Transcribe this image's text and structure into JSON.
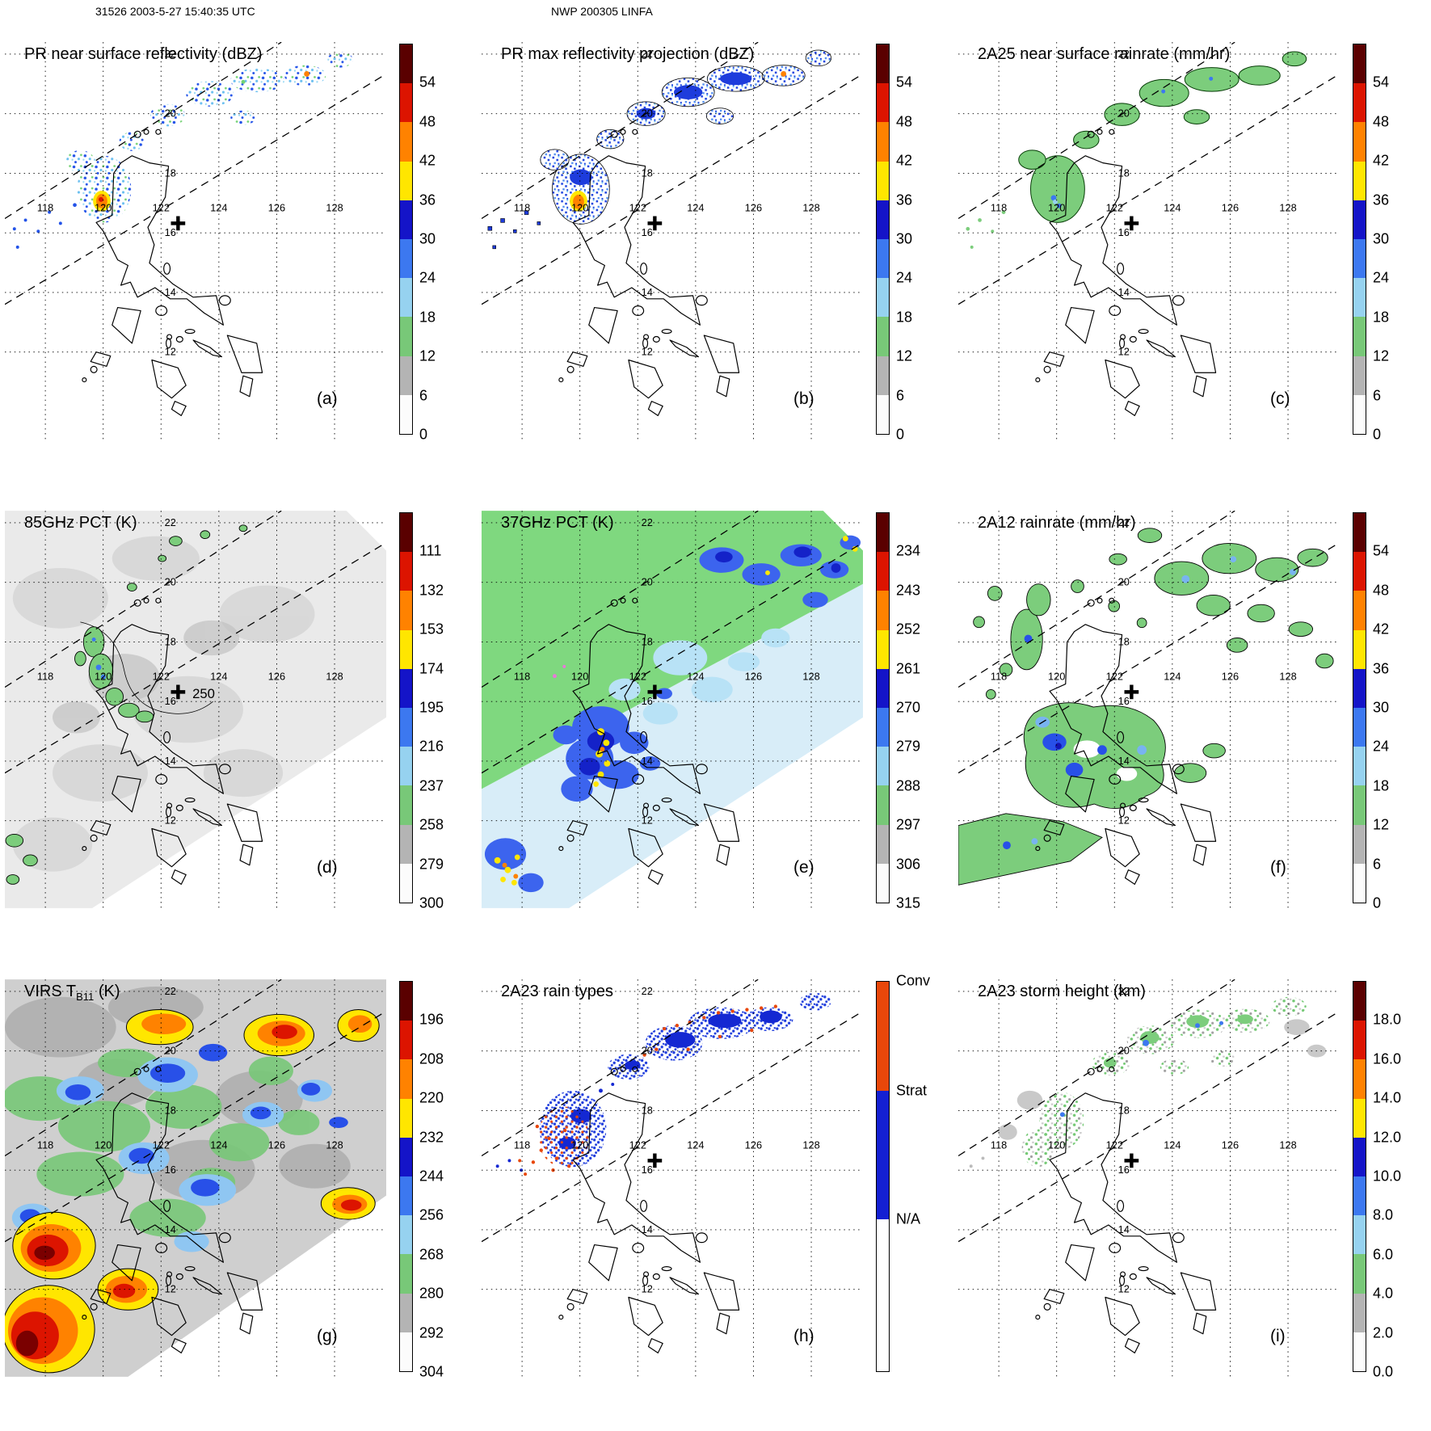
{
  "header": {
    "left": "31526 2003-5-27 15:40:35 UTC",
    "center": "NWP 200305 LINFA"
  },
  "geo": {
    "lon": [
      {
        "value": 118,
        "label": "118"
      },
      {
        "value": 120,
        "label": "120"
      },
      {
        "value": 122,
        "label": "122"
      },
      {
        "value": 124,
        "label": "124"
      },
      {
        "value": 126,
        "label": "126"
      },
      {
        "value": 128,
        "label": "128"
      }
    ],
    "lat": [
      {
        "value": 22,
        "label": "22"
      },
      {
        "value": 20,
        "label": "20"
      },
      {
        "value": 18,
        "label": "18"
      },
      {
        "value": 16,
        "label": "16"
      },
      {
        "value": 14,
        "label": "14"
      },
      {
        "value": 12,
        "label": "12"
      }
    ]
  },
  "panels": [
    {
      "letter": "(a)",
      "title_pre": "PR near surface reflectivity (dBZ)",
      "title_sub": "",
      "title_post": "",
      "colorbar": {
        "type": "numeric",
        "ticks": [
          "54",
          "48",
          "42",
          "36",
          "30",
          "24",
          "18",
          "12",
          "6",
          "0"
        ],
        "colors": [
          "#5a0000",
          "#dc1400",
          "#ff8200",
          "#ffe600",
          "#1414c8",
          "#3c78f0",
          "#96d2f0",
          "#78c878",
          "#b4b4b4",
          "#fcfcfc"
        ]
      }
    },
    {
      "letter": "(b)",
      "title_pre": "PR max reflectivity projection (dBZ)",
      "title_sub": "",
      "title_post": "",
      "colorbar": {
        "type": "numeric",
        "ticks": [
          "54",
          "48",
          "42",
          "36",
          "30",
          "24",
          "18",
          "12",
          "6",
          "0"
        ],
        "colors": [
          "#5a0000",
          "#dc1400",
          "#ff8200",
          "#ffe600",
          "#1414c8",
          "#3c78f0",
          "#96d2f0",
          "#78c878",
          "#b4b4b4",
          "#fcfcfc"
        ]
      }
    },
    {
      "letter": "(c)",
      "title_pre": "2A25 near surface rainrate (mm/hr)",
      "title_sub": "",
      "title_post": "",
      "colorbar": {
        "type": "numeric",
        "ticks": [
          "54",
          "48",
          "42",
          "36",
          "30",
          "24",
          "18",
          "12",
          "6",
          "0"
        ],
        "colors": [
          "#5a0000",
          "#dc1400",
          "#ff8200",
          "#ffe600",
          "#1414c8",
          "#3c78f0",
          "#96d2f0",
          "#78c878",
          "#b4b4b4",
          "#fcfcfc"
        ]
      }
    },
    {
      "letter": "(d)",
      "title_pre": "85GHz PCT (K)",
      "title_sub": "",
      "title_post": "",
      "map_annotation": "250",
      "colorbar": {
        "type": "numeric",
        "ticks": [
          "111",
          "132",
          "153",
          "174",
          "195",
          "216",
          "237",
          "258",
          "279",
          "300"
        ],
        "colors": [
          "#5a0000",
          "#dc1400",
          "#ff8200",
          "#ffe600",
          "#1414c8",
          "#3c78f0",
          "#96d2f0",
          "#78c878",
          "#b4b4b4",
          "#fcfcfc"
        ]
      }
    },
    {
      "letter": "(e)",
      "title_pre": "37GHz PCT (K)",
      "title_sub": "",
      "title_post": "",
      "colorbar": {
        "type": "numeric",
        "ticks": [
          "234",
          "243",
          "252",
          "261",
          "270",
          "279",
          "288",
          "297",
          "306",
          "315"
        ],
        "colors": [
          "#5a0000",
          "#dc1400",
          "#ff8200",
          "#ffe600",
          "#1414c8",
          "#3c78f0",
          "#96d2f0",
          "#78c878",
          "#b4b4b4",
          "#fcfcfc"
        ]
      }
    },
    {
      "letter": "(f)",
      "title_pre": "2A12 rainrate (mm/hr)",
      "title_sub": "",
      "title_post": "",
      "colorbar": {
        "type": "numeric",
        "ticks": [
          "54",
          "48",
          "42",
          "36",
          "30",
          "24",
          "18",
          "12",
          "6",
          "0"
        ],
        "colors": [
          "#5a0000",
          "#dc1400",
          "#ff8200",
          "#ffe600",
          "#1414c8",
          "#3c78f0",
          "#96d2f0",
          "#78c878",
          "#b4b4b4",
          "#fcfcfc"
        ]
      }
    },
    {
      "letter": "(g)",
      "title_pre": "VIRS T",
      "title_sub": "B11",
      "title_post": " (K)",
      "colorbar": {
        "type": "numeric",
        "ticks": [
          "196",
          "208",
          "220",
          "232",
          "244",
          "256",
          "268",
          "280",
          "292",
          "304"
        ],
        "colors": [
          "#5a0000",
          "#dc1400",
          "#ff8200",
          "#ffe600",
          "#1414c8",
          "#3c78f0",
          "#96d2f0",
          "#78c878",
          "#b4b4b4",
          "#fcfcfc"
        ]
      }
    },
    {
      "letter": "(h)",
      "title_pre": "2A23 rain types",
      "title_sub": "",
      "title_post": "",
      "colorbar": {
        "type": "categorical",
        "segments": [
          {
            "label": "Conv",
            "color": "#e8470a",
            "frac": 0.28
          },
          {
            "label": "Strat",
            "color": "#1420d2",
            "frac": 0.33
          },
          {
            "label": "N/A",
            "color": "#ffffff",
            "frac": 0.39
          }
        ]
      }
    },
    {
      "letter": "(i)",
      "title_pre": "2A23 storm height (km)",
      "title_sub": "",
      "title_post": "",
      "colorbar": {
        "type": "numeric",
        "ticks": [
          "18.0",
          "16.0",
          "14.0",
          "12.0",
          "10.0",
          "8.0",
          "6.0",
          "4.0",
          "2.0",
          "0.0"
        ],
        "colors": [
          "#5a0000",
          "#dc1400",
          "#ff8200",
          "#ffe600",
          "#1414c8",
          "#3c78f0",
          "#96d2f0",
          "#78c878",
          "#b4b4b4",
          "#fcfcfc"
        ]
      }
    }
  ],
  "chart_data": {
    "figure_type": "multi-panel TRMM satellite observation maps of one overpass",
    "orbit_header": "31526 2003-5-27 15:40:35 UTC",
    "storm_header": "NWP 200305 LINFA",
    "shared_axes": {
      "lon_ticks": [
        118,
        120,
        122,
        124,
        126,
        128
      ],
      "lat_ticks": [
        12,
        14,
        16,
        18,
        20,
        22
      ],
      "approx_extent": {
        "lon": [
          116.6,
          129.8
        ],
        "lat": [
          9.1,
          22.4
        ]
      },
      "grid": "dotted graticule",
      "coastlines": "Philippines (Luzon, Mindoro, Samar, Masbate, Panay, Visayas)"
    },
    "storm_center_mark": {
      "lon": 122.6,
      "lat": 16.4,
      "symbol": "+"
    },
    "swath_edges": "two dashed lines tilted SW-NE marking the PR swath",
    "panels": [
      {
        "id": "a",
        "type": "heatmap",
        "title": "PR near surface reflectivity (dBZ)",
        "units": "dBZ",
        "scale_ticks": [
          54,
          48,
          42,
          36,
          30,
          24,
          18,
          12,
          6,
          0
        ],
        "features": [
          "convective core 36-54 dBZ near 120E 17N west of Luzon",
          "scattered 18-35 dBZ echoes in NE-tilted swath band from 117E 16N to 128E 23N"
        ]
      },
      {
        "id": "b",
        "type": "heatmap",
        "title": "PR max reflectivity projection (dBZ)",
        "units": "dBZ",
        "scale_ticks": [
          54,
          48,
          42,
          36,
          30,
          24,
          18,
          12,
          6,
          0
        ],
        "features": [
          "same rainband as (a) but denser 24-36 dBZ areas with black outlines",
          "orange 42-48 dBZ core near 120E 17N"
        ]
      },
      {
        "id": "c",
        "type": "heatmap",
        "title": "2A25 near surface rainrate (mm/hr)",
        "units": "mm/hr",
        "scale_ticks": [
          54,
          48,
          42,
          36,
          30,
          24,
          18,
          12,
          6,
          0
        ],
        "features": [
          "mostly 12-18 mm/hr (green) patches tracing the rainband",
          "small 24-30 mm/hr pixels near 120E 17N"
        ]
      },
      {
        "id": "d",
        "type": "heatmap",
        "title": "85GHz PCT (K)",
        "units": "K",
        "scale_ticks": [
          111,
          132,
          153,
          174,
          195,
          216,
          237,
          258,
          279,
          300
        ],
        "annotations": [
          "250 K contour label near 123.4E 16.2N"
        ],
        "features": [
          "wide TMI swath of 258-300 K (light gray)",
          "237-258 K depressions (green) arc west of Luzon and along 20-22N"
        ]
      },
      {
        "id": "e",
        "type": "heatmap",
        "title": "37GHz PCT (K)",
        "units": "K",
        "scale_ticks": [
          234,
          243,
          252,
          261,
          270,
          279,
          288,
          297,
          306,
          315
        ],
        "features": [
          "warm ocean background 288+ K (green) northwest half",
          "270-279 K (blue) cells west of Luzon and along 20-22N",
          "261 K (yellow) pixels in strongest cells near 120E 15-16N and SW corner"
        ]
      },
      {
        "id": "f",
        "type": "heatmap",
        "title": "2A12 rainrate (mm/hr)",
        "units": "mm/hr",
        "scale_ticks": [
          54,
          48,
          42,
          36,
          30,
          24,
          18,
          12,
          6,
          0
        ],
        "features": [
          "broad 12-18 mm/hr (green) rain areas over/west of Luzon and along 20-23N",
          "24-30 mm/hr (blue) cores near 120-121E 14-16N"
        ]
      },
      {
        "id": "g",
        "type": "heatmap",
        "title": "VIRS TB11 (K)",
        "units": "K",
        "scale_ticks": [
          196,
          208,
          220,
          232,
          244,
          256,
          268,
          280,
          292,
          304
        ],
        "features": [
          "extensive cold cloud shield: 208-232 K (yellow-orange) clusters at 121-123E 21-22N and 125-127E 21-22N",
          "196-208 K (red/dark red) cores near 117-119E 13-16N and SW corner",
          "gray 280-304 K clear areas NE of swath"
        ]
      },
      {
        "id": "h",
        "type": "categorical-map",
        "title": "2A23 rain types",
        "classes": [
          "Conv",
          "Strat",
          "N/A"
        ],
        "features": [
          "mostly stratiform (blue) echoes along the rainband",
          "convective (red-orange) pixels clustered near 118-120E 17-19N and along band edges"
        ]
      },
      {
        "id": "i",
        "type": "heatmap",
        "title": "2A23 storm height (km)",
        "units": "km",
        "scale_ticks": [
          18.0,
          16.0,
          14.0,
          12.0,
          10.0,
          8.0,
          6.0,
          4.0,
          2.0,
          0.0
        ],
        "features": [
          "storm heights mostly 4-8 km (gray/green speckle) along the band",
          "isolated 8-12 km (blue) tops near 122.5E 20.5N and 126E 21.5N"
        ]
      }
    ]
  }
}
